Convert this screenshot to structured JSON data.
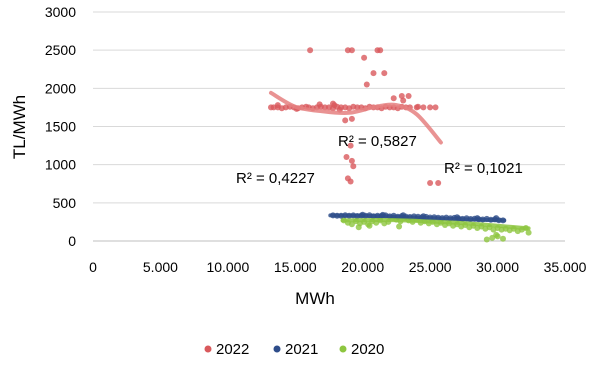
{
  "chart_data": {
    "type": "scatter",
    "title": "",
    "xlabel": "MWh",
    "ylabel": "TL/MWh",
    "xlim": [
      0,
      35000
    ],
    "ylim": [
      0,
      3000
    ],
    "x_ticks": [
      0,
      5000,
      10000,
      15000,
      20000,
      25000,
      30000,
      35000
    ],
    "x_tick_labels": [
      "0",
      "5.000",
      "10.000",
      "15.000",
      "20.000",
      "25.000",
      "30.000",
      "35.000"
    ],
    "y_ticks": [
      0,
      500,
      1000,
      1500,
      2000,
      2500,
      3000
    ],
    "y_tick_labels": [
      "0",
      "500",
      "1000",
      "1500",
      "2000",
      "2500",
      "3000"
    ],
    "grid": "horizontal",
    "legend_position": "bottom",
    "series": [
      {
        "name": "2022",
        "color": "#d9595c",
        "trend_color": "#e58080",
        "trend_x_range": [
          13200,
          25800
        ],
        "trend_poly": [
          {
            "x": 13200,
            "y": 1940
          },
          {
            "x": 15000,
            "y": 1760
          },
          {
            "x": 17000,
            "y": 1700
          },
          {
            "x": 19000,
            "y": 1680
          },
          {
            "x": 21000,
            "y": 1760
          },
          {
            "x": 22500,
            "y": 1780
          },
          {
            "x": 24000,
            "y": 1660
          },
          {
            "x": 25800,
            "y": 1290
          }
        ],
        "r2_label": "R² = 0,5827",
        "points": [
          [
            13200,
            1750
          ],
          [
            13400,
            1750
          ],
          [
            13700,
            1750
          ],
          [
            14000,
            1740
          ],
          [
            14300,
            1750
          ],
          [
            14600,
            1760
          ],
          [
            14900,
            1750
          ],
          [
            15200,
            1740
          ],
          [
            15500,
            1750
          ],
          [
            15800,
            1760
          ],
          [
            16000,
            1750
          ],
          [
            16300,
            1740
          ],
          [
            16600,
            1750
          ],
          [
            16900,
            1760
          ],
          [
            17200,
            1750
          ],
          [
            17500,
            1750
          ],
          [
            17800,
            1740
          ],
          [
            18100,
            1760
          ],
          [
            18400,
            1750
          ],
          [
            18700,
            1750
          ],
          [
            19000,
            1740
          ],
          [
            19300,
            1760
          ],
          [
            19600,
            1750
          ],
          [
            19900,
            1750
          ],
          [
            20200,
            1740
          ],
          [
            20500,
            1760
          ],
          [
            20800,
            1750
          ],
          [
            21100,
            1750
          ],
          [
            21400,
            1740
          ],
          [
            21700,
            1760
          ],
          [
            22000,
            1750
          ],
          [
            22300,
            1750
          ],
          [
            22600,
            1740
          ],
          [
            22900,
            1760
          ],
          [
            23200,
            1750
          ],
          [
            23500,
            1750
          ],
          [
            24000,
            1750
          ],
          [
            24500,
            1750
          ],
          [
            25000,
            1750
          ],
          [
            25400,
            1750
          ],
          [
            13700,
            1780
          ],
          [
            15100,
            1730
          ],
          [
            16800,
            1790
          ],
          [
            18300,
            1720
          ],
          [
            17900,
            1780
          ],
          [
            16100,
            2500
          ],
          [
            18900,
            2500
          ],
          [
            19200,
            2500
          ],
          [
            20100,
            2400
          ],
          [
            21100,
            2500
          ],
          [
            21300,
            2500
          ],
          [
            20800,
            2200
          ],
          [
            21600,
            2200
          ],
          [
            20300,
            2050
          ],
          [
            22900,
            1900
          ],
          [
            23400,
            1900
          ],
          [
            19200,
            1600
          ],
          [
            18700,
            1580
          ],
          [
            17800,
            1800
          ],
          [
            19100,
            1250
          ],
          [
            19200,
            1050
          ],
          [
            18800,
            1100
          ],
          [
            19300,
            980
          ],
          [
            18900,
            820
          ],
          [
            19100,
            780
          ],
          [
            25000,
            760
          ],
          [
            25600,
            760
          ],
          [
            22300,
            1870
          ],
          [
            23000,
            1840
          ],
          [
            24100,
            1760
          ]
        ]
      },
      {
        "name": "2021",
        "color": "#2e4d8a",
        "trend_color": "#2e4d8a",
        "trend_x_range": [
          17600,
          30500
        ],
        "trend_poly": [
          {
            "x": 17600,
            "y": 335
          },
          {
            "x": 20000,
            "y": 332
          },
          {
            "x": 22500,
            "y": 318
          },
          {
            "x": 25000,
            "y": 300
          },
          {
            "x": 27500,
            "y": 285
          },
          {
            "x": 30500,
            "y": 270
          }
        ],
        "r2_label": "R² = 0,4227",
        "points": [
          [
            17800,
            335
          ],
          [
            18100,
            330
          ],
          [
            18400,
            332
          ],
          [
            18700,
            338
          ],
          [
            19000,
            330
          ],
          [
            19300,
            336
          ],
          [
            19600,
            328
          ],
          [
            19900,
            334
          ],
          [
            20200,
            330
          ],
          [
            20500,
            338
          ],
          [
            20800,
            325
          ],
          [
            21100,
            332
          ],
          [
            21400,
            330
          ],
          [
            21700,
            335
          ],
          [
            22000,
            322
          ],
          [
            22300,
            330
          ],
          [
            22600,
            318
          ],
          [
            22900,
            326
          ],
          [
            23200,
            320
          ],
          [
            23500,
            315
          ],
          [
            23800,
            322
          ],
          [
            24100,
            318
          ],
          [
            24400,
            310
          ],
          [
            24700,
            316
          ],
          [
            25000,
            308
          ],
          [
            25300,
            312
          ],
          [
            25600,
            305
          ],
          [
            25900,
            300
          ],
          [
            26200,
            306
          ],
          [
            26500,
            298
          ],
          [
            26800,
            302
          ],
          [
            27100,
            295
          ],
          [
            27400,
            290
          ],
          [
            27700,
            298
          ],
          [
            28000,
            288
          ],
          [
            28300,
            292
          ],
          [
            28600,
            285
          ],
          [
            28900,
            282
          ],
          [
            29200,
            290
          ],
          [
            29500,
            278
          ],
          [
            29800,
            284
          ],
          [
            30100,
            272
          ],
          [
            30400,
            270
          ],
          [
            20000,
            345
          ],
          [
            21500,
            342
          ],
          [
            23000,
            338
          ],
          [
            24500,
            325
          ],
          [
            27000,
            310
          ],
          [
            28500,
            300
          ],
          [
            29900,
            300
          ]
        ]
      },
      {
        "name": "2020",
        "color": "#8dc63f",
        "trend_color": "#8dc63f",
        "trend_x_range": [
          18500,
          32300
        ],
        "trend_poly": [
          {
            "x": 18500,
            "y": 270
          },
          {
            "x": 21000,
            "y": 275
          },
          {
            "x": 23000,
            "y": 270
          },
          {
            "x": 25000,
            "y": 255
          },
          {
            "x": 27000,
            "y": 238
          },
          {
            "x": 29000,
            "y": 215
          },
          {
            "x": 31000,
            "y": 185
          },
          {
            "x": 32300,
            "y": 165
          }
        ],
        "r2_label": "R² = 0,1021",
        "points": [
          [
            18600,
            270
          ],
          [
            18900,
            240
          ],
          [
            19200,
            220
          ],
          [
            19500,
            260
          ],
          [
            19800,
            230
          ],
          [
            20100,
            250
          ],
          [
            20400,
            220
          ],
          [
            20700,
            260
          ],
          [
            21000,
            240
          ],
          [
            21300,
            270
          ],
          [
            21600,
            230
          ],
          [
            21900,
            250
          ],
          [
            22200,
            300
          ],
          [
            22500,
            280
          ],
          [
            22800,
            260
          ],
          [
            23100,
            300
          ],
          [
            23400,
            270
          ],
          [
            23700,
            250
          ],
          [
            24000,
            280
          ],
          [
            24300,
            240
          ],
          [
            24600,
            260
          ],
          [
            24900,
            230
          ],
          [
            25200,
            250
          ],
          [
            25500,
            220
          ],
          [
            25800,
            240
          ],
          [
            26100,
            210
          ],
          [
            26400,
            230
          ],
          [
            26700,
            200
          ],
          [
            27000,
            220
          ],
          [
            27300,
            190
          ],
          [
            27600,
            210
          ],
          [
            27900,
            180
          ],
          [
            28200,
            200
          ],
          [
            28500,
            170
          ],
          [
            28800,
            190
          ],
          [
            29100,
            160
          ],
          [
            29400,
            180
          ],
          [
            29700,
            150
          ],
          [
            30000,
            170
          ],
          [
            30300,
            150
          ],
          [
            30600,
            160
          ],
          [
            30900,
            140
          ],
          [
            31200,
            160
          ],
          [
            31500,
            130
          ],
          [
            31800,
            150
          ],
          [
            32100,
            170
          ],
          [
            32300,
            110
          ],
          [
            29200,
            20
          ],
          [
            29600,
            40
          ],
          [
            30000,
            60
          ],
          [
            30400,
            30
          ],
          [
            29900,
            80
          ],
          [
            20500,
            200
          ],
          [
            19700,
            180
          ],
          [
            22700,
            190
          ]
        ]
      }
    ]
  }
}
